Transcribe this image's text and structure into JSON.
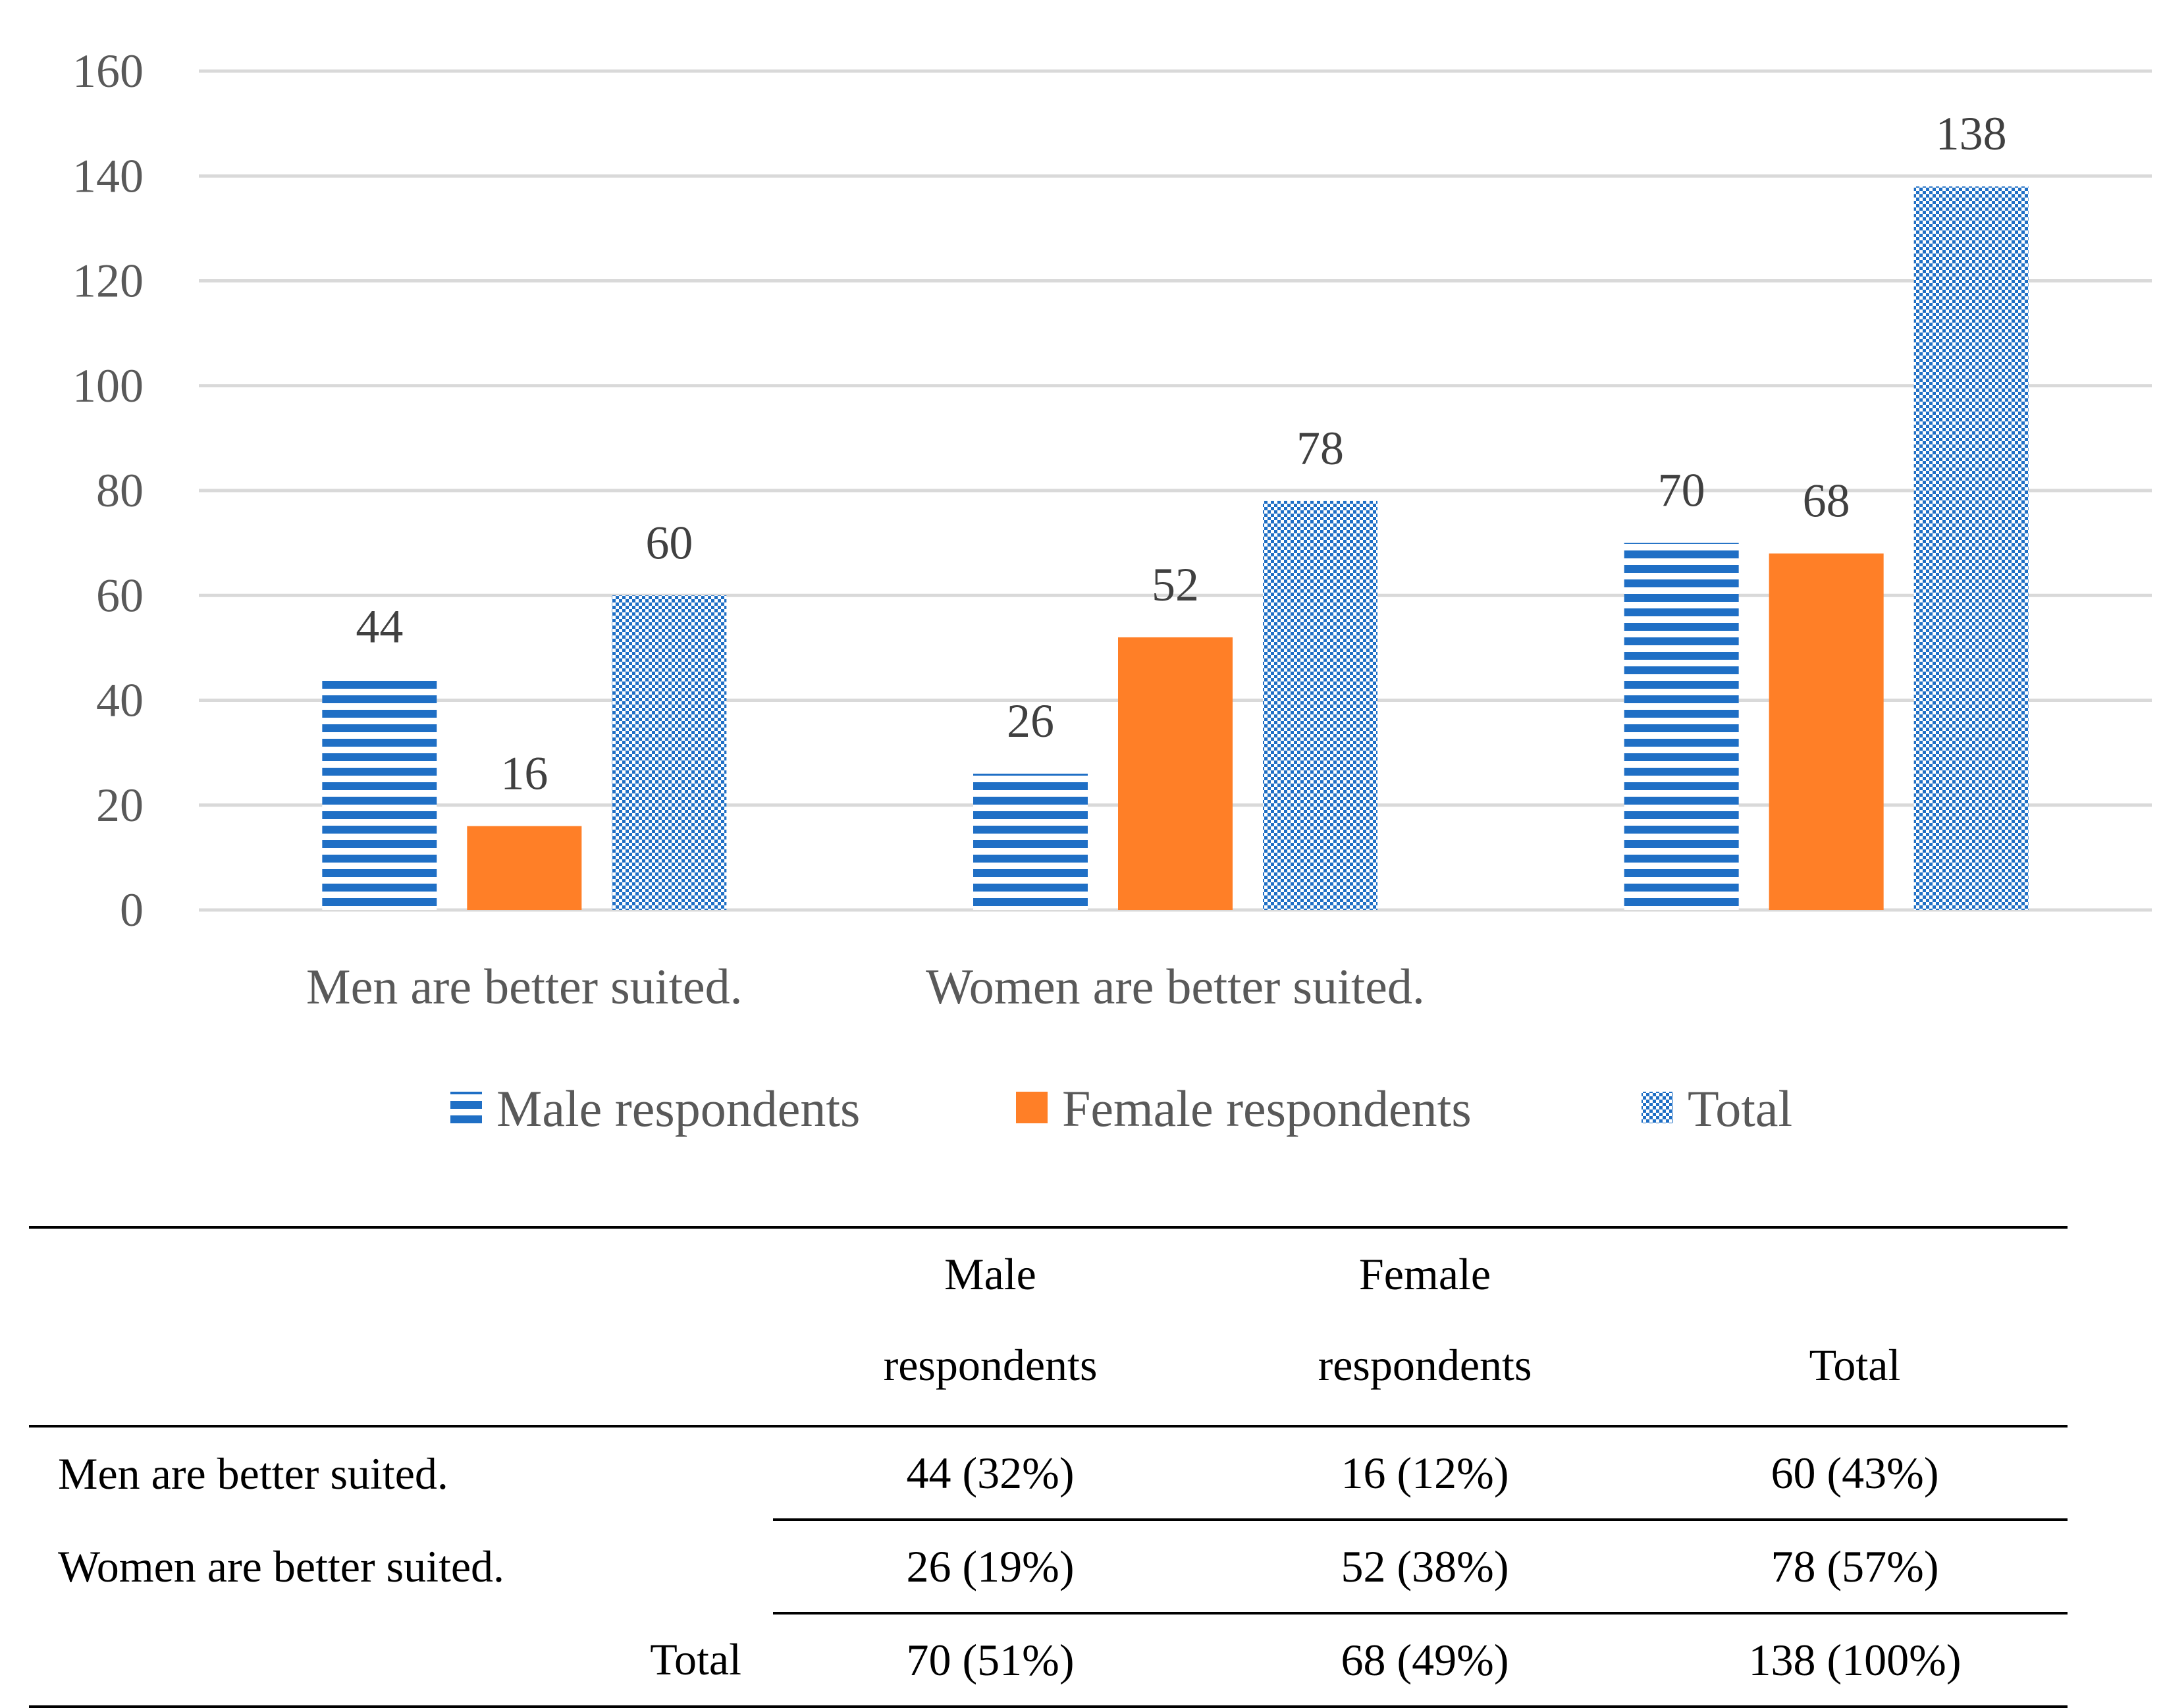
{
  "chart_data": {
    "type": "bar",
    "categories": [
      "Men are better suited.",
      "Women are better suited.",
      ""
    ],
    "series": [
      {
        "name": "Male respondents",
        "values": [
          44,
          26,
          70
        ],
        "color": "#1f6fc5",
        "pattern": "horizontal-stripes"
      },
      {
        "name": "Female respondents",
        "values": [
          16,
          52,
          68
        ],
        "color": "#ff7f27",
        "pattern": "solid"
      },
      {
        "name": "Total",
        "values": [
          60,
          78,
          138
        ],
        "color": "#1f6fc5",
        "pattern": "dots"
      }
    ],
    "y_ticks": [
      "0",
      "20",
      "40",
      "60",
      "80",
      "100",
      "120",
      "140",
      "160"
    ],
    "ylim": [
      0,
      160
    ],
    "grid": true,
    "legend_position": "bottom",
    "title": "",
    "xlabel": "",
    "ylabel": ""
  },
  "table": {
    "headers": {
      "male_line1": "Male",
      "male_line2": "respondents",
      "female_line1": "Female",
      "female_line2": "respondents",
      "total": "Total"
    },
    "rows": [
      {
        "label": "Men are better suited.",
        "male": "44 (32%)",
        "female": "16 (12%)",
        "total": "60 (43%)"
      },
      {
        "label": "Women are better suited.",
        "male": "26 (19%)",
        "female": "52 (38%)",
        "total": "78 (57%)"
      },
      {
        "label": "Total",
        "male": "70 (51%)",
        "female": "68 (49%)",
        "total": "138 (100%)"
      }
    ]
  }
}
